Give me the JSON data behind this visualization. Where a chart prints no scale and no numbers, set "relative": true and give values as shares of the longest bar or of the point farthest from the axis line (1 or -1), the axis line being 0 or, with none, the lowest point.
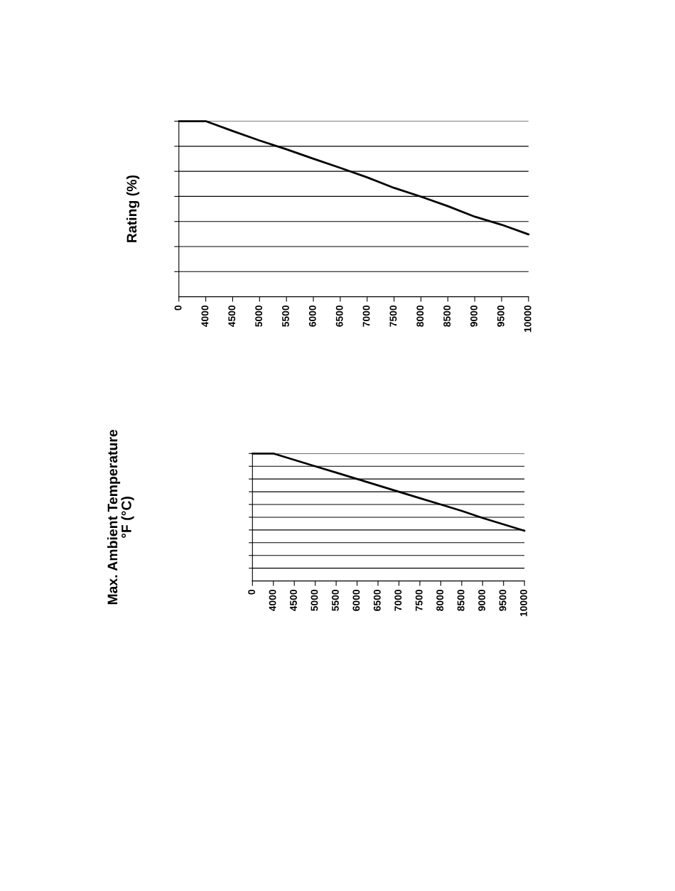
{
  "chart_data": [
    {
      "type": "line",
      "ylabel": "Rating (%)",
      "relative": true,
      "grid": "y",
      "color": "#000000",
      "categories": [
        "0",
        "4000",
        "4500",
        "5000",
        "5500",
        "6000",
        "6500",
        "7000",
        "7500",
        "8000",
        "8500",
        "9000",
        "9500",
        "10000"
      ],
      "values": [
        1,
        1,
        0.944,
        0.89,
        0.84,
        0.786,
        0.734,
        0.68,
        0.62,
        0.57,
        0.516,
        0.456,
        0.41,
        0.355
      ]
    },
    {
      "type": "line",
      "ylabel": "Max. Ambient Temperature\n°F (°C)",
      "relative": true,
      "grid": "y",
      "color": "#000000",
      "categories": [
        "0",
        "4000",
        "4500",
        "5000",
        "5500",
        "6000",
        "6500",
        "7000",
        "7500",
        "8000",
        "8500",
        "9000",
        "9500",
        "10000"
      ],
      "values": [
        1,
        1,
        0.95,
        0.9,
        0.85,
        0.8,
        0.75,
        0.7,
        0.65,
        0.6,
        0.55,
        0.494,
        0.444,
        0.394
      ]
    }
  ]
}
